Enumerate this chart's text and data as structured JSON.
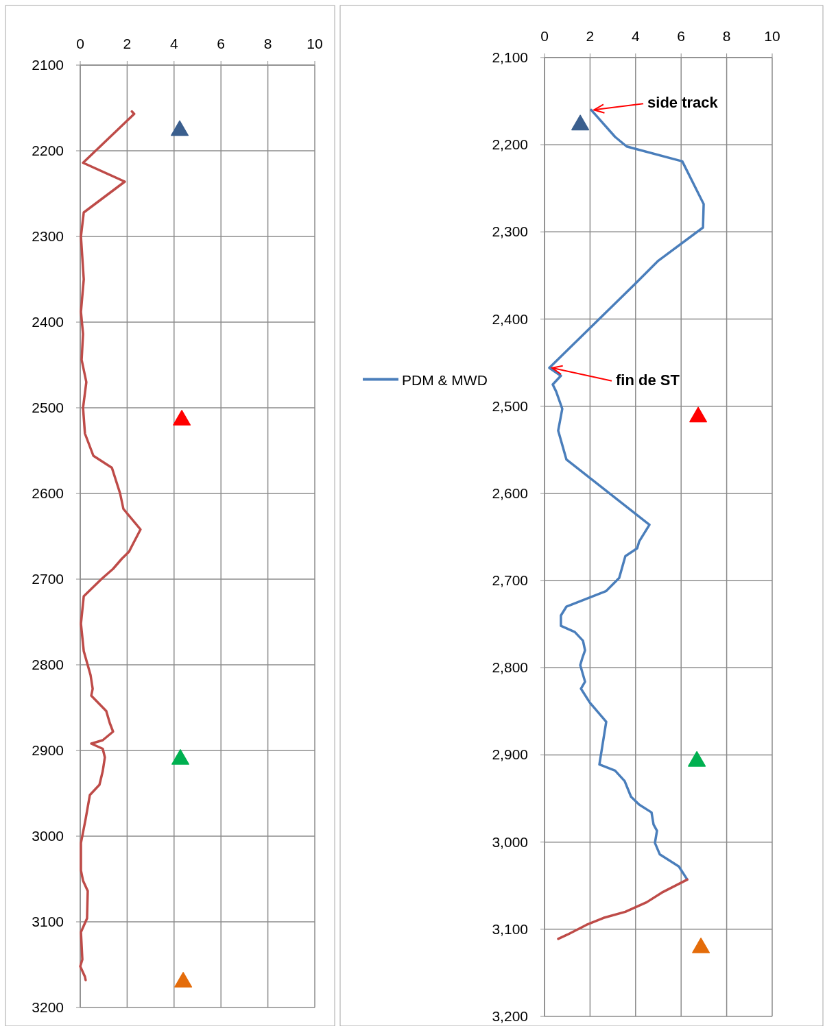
{
  "chart_data": [
    {
      "type": "line",
      "xlim": [
        0,
        10
      ],
      "xticks": [
        0,
        2,
        4,
        6,
        8,
        10
      ],
      "ylim": [
        3200,
        2100
      ],
      "yticks": [
        2100,
        2200,
        2300,
        2400,
        2500,
        2600,
        2700,
        2800,
        2900,
        3000,
        3100,
        3200
      ],
      "grid": true,
      "legend": false,
      "marker": "none",
      "line_style": "solid",
      "series": [
        {
          "color": "#be4b48",
          "x": [
            2.2,
            2.3,
            0.12,
            1.9,
            0.15,
            0.03,
            0.15,
            0.03,
            0.12,
            0.06,
            0.26,
            0.12,
            0.2,
            0.56,
            1.35,
            1.7,
            1.84,
            2.57,
            2.19,
            2.08,
            1.78,
            1.4,
            0.9,
            0.15,
            0.03,
            0.15,
            0.44,
            0.53,
            0.47,
            1.11,
            1.26,
            1.4,
            0.96,
            0.47,
            0.96,
            1.05,
            0.96,
            0.82,
            0.41,
            0.23,
            0.03,
            0.03,
            0.12,
            0.32,
            0.29,
            0.03,
            0.09,
            0,
            0.2,
            0.23
          ],
          "values": [
            2154,
            2157,
            2214,
            2236,
            2272,
            2300,
            2350,
            2388,
            2414,
            2444,
            2470,
            2500,
            2530,
            2556,
            2570,
            2600,
            2618,
            2642,
            2662,
            2668,
            2676,
            2688,
            2700,
            2720,
            2752,
            2784,
            2812,
            2828,
            2836,
            2854,
            2868,
            2878,
            2888,
            2892,
            2898,
            2908,
            2924,
            2940,
            2952,
            2980,
            3008,
            3040,
            3052,
            3064,
            3096,
            3112,
            3144,
            3152,
            3164,
            3168
          ]
        },
        {
          "type": "scatter",
          "marker": "triangle",
          "x": [
            4.24,
            4.33,
            4.27,
            4.39
          ],
          "values": [
            2174,
            2512,
            2908,
            3168
          ],
          "colors": [
            "#3b5f8e",
            "#ff0000",
            "#00b050",
            "#e46c0a"
          ]
        }
      ]
    },
    {
      "type": "line",
      "xlim": [
        0,
        10
      ],
      "xticks": [
        0,
        2,
        4,
        6,
        8,
        10
      ],
      "ylim": [
        3200,
        2100
      ],
      "yticks": [
        {
          "value": 2100,
          "label": "2,100"
        },
        {
          "value": 2200,
          "label": "2,200"
        },
        {
          "value": 2300,
          "label": "2,300"
        },
        {
          "value": 2400,
          "label": "2,400"
        },
        {
          "value": 2500,
          "label": "2,500"
        },
        {
          "value": 2600,
          "label": "2,600"
        },
        {
          "value": 2700,
          "label": "2,700"
        },
        {
          "value": 2800,
          "label": "2,800"
        },
        {
          "value": 2900,
          "label": "2,900"
        },
        {
          "value": 3000,
          "label": "3,000"
        },
        {
          "value": 3100,
          "label": "3,100"
        },
        {
          "value": 3200,
          "label": "3,200"
        }
      ],
      "grid": true,
      "legend": "left",
      "marker": "none",
      "line_style": "solid",
      "series": [
        {
          "name": "PDM & MWD",
          "color": "#4a7ebb",
          "x": [
            2.05,
            3.1,
            3.61,
            6.05,
            6.99,
            6.96,
            5.0,
            4.0,
            0.21,
            0.72,
            0.36,
            0.51,
            0.78,
            0.6,
            0.96,
            4.61,
            4.16,
            4.07,
            3.55,
            3.28,
            2.71,
            0.96,
            0.72,
            0.72,
            1.33,
            1.69,
            1.78,
            1.66,
            1.57,
            1.78,
            1.6,
            1.99,
            2.71,
            2.41,
            3.1,
            3.52,
            3.8,
            4.16,
            4.7,
            4.79,
            4.94,
            4.85,
            5.06,
            5.9,
            6.27
          ],
          "values": [
            2160,
            2191,
            2202,
            2219,
            2268,
            2295,
            2333,
            2359,
            2456,
            2465,
            2475,
            2483,
            2503,
            2528,
            2561,
            2636,
            2655,
            2663,
            2672,
            2697,
            2712,
            2730,
            2740,
            2752,
            2759,
            2769,
            2780,
            2789,
            2797,
            2816,
            2824,
            2840,
            2862,
            2911,
            2918,
            2930,
            2948,
            2957,
            2966,
            2980,
            2987,
            3001,
            3014,
            3028,
            3043
          ]
        },
        {
          "color": "#be4b48",
          "x": [
            6.27,
            5.15,
            4.49,
            3.55,
            2.59,
            1.84,
            1.02,
            0.6
          ],
          "values": [
            3043,
            3058,
            3069,
            3080,
            3087,
            3095,
            3106,
            3111
          ]
        },
        {
          "type": "scatter",
          "marker": "triangle",
          "x": [
            1.57,
            6.75,
            6.69,
            6.87
          ],
          "values": [
            2175,
            2510,
            2905,
            3119
          ],
          "colors": [
            "#3b5f8e",
            "#ff0000",
            "#00b050",
            "#e46c0a"
          ]
        }
      ],
      "annotations": [
        {
          "text": "side track",
          "x": 2.05,
          "y": 2160
        },
        {
          "text": "fin de ST",
          "x": 0.21,
          "y": 2456
        }
      ]
    }
  ]
}
